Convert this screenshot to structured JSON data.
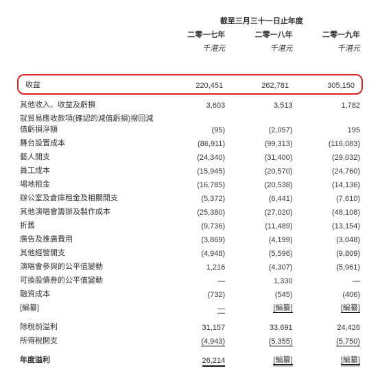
{
  "header": {
    "span": "截至三月三十一日止年度",
    "years": [
      "二零一七年",
      "二零一八年",
      "二零一九年"
    ],
    "unit": "千港元"
  },
  "rows": [
    {
      "label": "收益",
      "vals": [
        "220,451",
        "262,781",
        "305,150"
      ],
      "highlight": true
    },
    {
      "label": "其他收入、收益及虧損",
      "vals": [
        "3,603",
        "3,513",
        "1,782"
      ]
    },
    {
      "label": "就貿易應收款項(確認的減值虧損)撥回減值虧損淨額",
      "vals": [
        "(95)",
        "(2,057)",
        "195"
      ]
    },
    {
      "label": "舞台設置成本",
      "vals": [
        "(86,911)",
        "(99,313)",
        "(116,083)"
      ]
    },
    {
      "label": "藝人開支",
      "vals": [
        "(24,340)",
        "(31,400)",
        "(29,032)"
      ]
    },
    {
      "label": "員工成本",
      "vals": [
        "(15,945)",
        "(20,570)",
        "(24,760)"
      ]
    },
    {
      "label": "場地租金",
      "vals": [
        "(16,785)",
        "(20,538)",
        "(14,136)"
      ]
    },
    {
      "label": "辦公室及倉庫租金及相關開支",
      "vals": [
        "(5,372)",
        "(6,441)",
        "(7,610)"
      ]
    },
    {
      "label": "其他演唱會籌辦及製作成本",
      "vals": [
        "(25,380)",
        "(27,020)",
        "(48,108)"
      ]
    },
    {
      "label": "折舊",
      "vals": [
        "(9,736)",
        "(11,489)",
        "(13,154)"
      ]
    },
    {
      "label": "廣告及推廣費用",
      "vals": [
        "(3,869)",
        "(4,199)",
        "(3,048)"
      ]
    },
    {
      "label": "其他經營開支",
      "vals": [
        "(4,948)",
        "(5,596)",
        "(9,809)"
      ]
    },
    {
      "label": "演唱會參與的公平值變動",
      "vals": [
        "1,216",
        "(4,307)",
        "(5,961)"
      ]
    },
    {
      "label": "可換股債券的公平值變動",
      "vals": [
        "—",
        "1,330",
        "—"
      ]
    },
    {
      "label": "融資成本",
      "vals": [
        "(732)",
        "(545)",
        "(406)"
      ]
    },
    {
      "label": "[編纂]",
      "vals": [
        "—",
        "[編纂]",
        "[編纂]"
      ],
      "underline": true
    }
  ],
  "subtotals": [
    {
      "label": "除稅前溢利",
      "vals": [
        "31,157",
        "33,691",
        "24,426"
      ]
    },
    {
      "label": "所得稅開支",
      "vals": [
        "(4,943)",
        "(5,355)",
        "(5,750)"
      ],
      "underline": true
    }
  ],
  "final": {
    "label": "年度溢利",
    "vals": [
      "26,214",
      "[編纂]",
      "[編纂]"
    ],
    "double": true
  }
}
